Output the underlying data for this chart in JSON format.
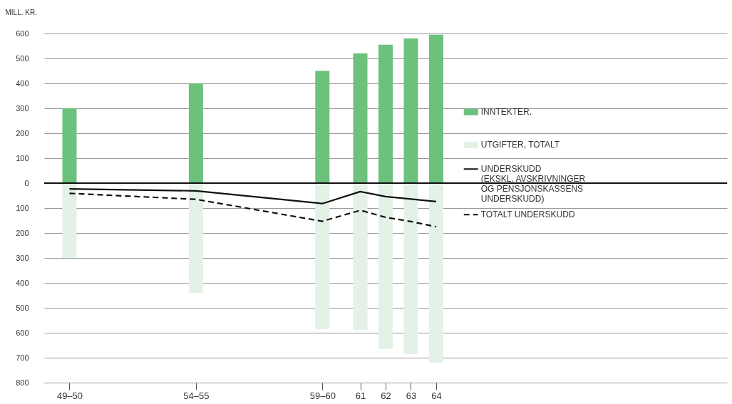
{
  "chart_data": {
    "type": "bar",
    "ylabel": "MILL. KR.",
    "x": [
      49.5,
      54.5,
      59.5,
      61,
      62,
      63,
      64
    ],
    "series": [
      {
        "name": "INNTEKTER.",
        "color": "#6cc17c",
        "values": [
          300,
          400,
          450,
          520,
          555,
          580,
          595
        ]
      },
      {
        "name": "UTGIFTER, TOTALT",
        "color": "#e4f1e6",
        "values": [
          -300,
          -440,
          -585,
          -590,
          -665,
          -685,
          -720
        ]
      },
      {
        "name": "UNDERSKUDD\n(EKSKL. AVSKRIVNINGER\nOG PENSJONSKASSENS\nUNDERSKUDD)",
        "type": "line",
        "color": "#111111",
        "line_style": "solid",
        "values": [
          -23,
          -31,
          -82,
          -34,
          -54,
          -64,
          -74
        ]
      },
      {
        "name": "TOTALT UNDERSKUDD",
        "type": "line",
        "color": "#111111",
        "line_style": "dashed",
        "values": [
          -41,
          -65,
          -153,
          -109,
          -137,
          -154,
          -175
        ]
      }
    ],
    "xlim": [
      48.5,
      75.5
    ],
    "xticks": [
      {
        "value": 49.5,
        "label": "49–50"
      },
      {
        "value": 54.5,
        "label": "54–55"
      },
      {
        "value": 59.5,
        "label": "59–60"
      },
      {
        "value": 61,
        "label": "61"
      },
      {
        "value": 62,
        "label": "62"
      },
      {
        "value": 63,
        "label": "63"
      },
      {
        "value": 64,
        "label": "64"
      }
    ],
    "ylim": [
      -800,
      600
    ],
    "yticks": [
      {
        "value": -800,
        "label": "800"
      },
      {
        "value": -700,
        "label": "700"
      },
      {
        "value": -600,
        "label": "600"
      },
      {
        "value": -500,
        "label": "500"
      },
      {
        "value": -400,
        "label": "400"
      },
      {
        "value": -300,
        "label": "300"
      },
      {
        "value": -200,
        "label": "200"
      },
      {
        "value": -100,
        "label": "100"
      },
      0,
      100,
      200,
      300,
      400,
      500,
      600
    ],
    "ref_lines": [
      {
        "axis": "y",
        "value": 0,
        "color": "#111111"
      }
    ],
    "stacked": true,
    "grid": "y",
    "legend": "right",
    "marker": "none"
  }
}
